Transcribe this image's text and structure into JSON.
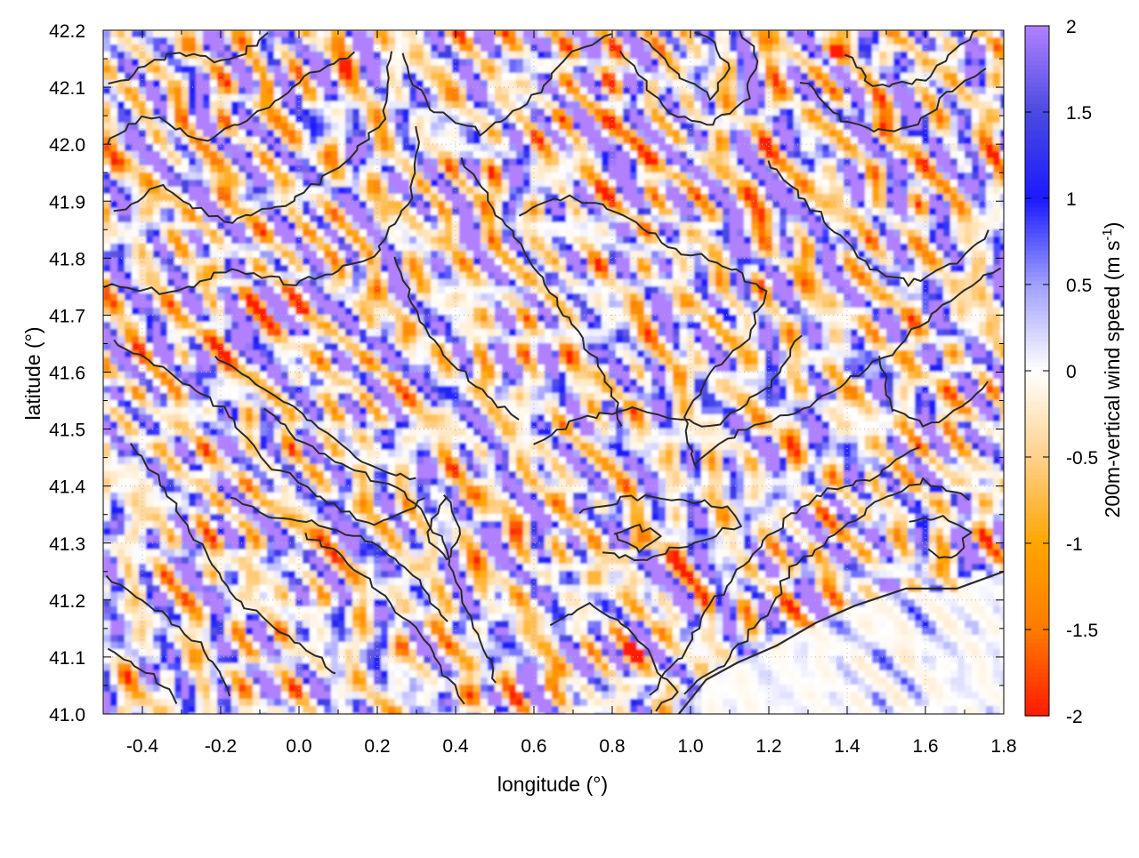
{
  "chart_data": {
    "type": "heatmap",
    "xlabel": "longitude (°)",
    "ylabel": "latitude (°)",
    "colorbar_label": "200m-vertical wind speed (m s",
    "colorbar_label_sup": "-1",
    "colorbar_label_end": ")",
    "xlim": [
      -0.5,
      1.8
    ],
    "ylim": [
      41.0,
      42.2
    ],
    "clim": [
      -2,
      2
    ],
    "x_ticks": [
      -0.4,
      -0.2,
      0.0,
      0.2,
      0.4,
      0.6,
      0.8,
      1.0,
      1.2,
      1.4,
      1.6,
      1.8
    ],
    "x_tick_labels": [
      "-0.4",
      "-0.2",
      "0.0",
      "0.2",
      "0.4",
      "0.6",
      "0.8",
      "1.0",
      "1.2",
      "1.4",
      "1.6",
      "1.8"
    ],
    "y_ticks": [
      41.0,
      41.1,
      41.2,
      41.3,
      41.4,
      41.5,
      41.6,
      41.7,
      41.8,
      41.9,
      42.0,
      42.1,
      42.2
    ],
    "y_tick_labels": [
      "41.0",
      "41.1",
      "41.2",
      "41.3",
      "41.4",
      "41.5",
      "41.6",
      "41.7",
      "41.8",
      "41.9",
      "42.0",
      "42.1",
      "42.2"
    ],
    "colorbar_ticks": [
      2,
      1.5,
      1,
      0.5,
      0,
      -0.5,
      -1,
      -1.5,
      -2
    ],
    "colorbar_tick_labels": [
      "2",
      "1.5",
      "1",
      "0.5",
      "0",
      "-0.5",
      "-1",
      "-1.5",
      "-2"
    ],
    "colormap": [
      {
        "v": -2.0,
        "color": "#ff1a00"
      },
      {
        "v": -1.5,
        "color": "#ff7a00"
      },
      {
        "v": -1.0,
        "color": "#ffa500"
      },
      {
        "v": -0.5,
        "color": "#ffd08a"
      },
      {
        "v": 0.0,
        "color": "#ffffff"
      },
      {
        "v": 0.5,
        "color": "#a0a0ff"
      },
      {
        "v": 1.0,
        "color": "#1a1aff"
      },
      {
        "v": 1.5,
        "color": "#4a4ae0"
      },
      {
        "v": 2.0,
        "color": "#b080ff"
      }
    ],
    "grid": true,
    "contour_color": "#2a2a2a",
    "coastline_points": [
      [
        0.97,
        41.0
      ],
      [
        1.04,
        41.06
      ],
      [
        1.12,
        41.09
      ],
      [
        1.22,
        41.12
      ],
      [
        1.32,
        41.16
      ],
      [
        1.42,
        41.19
      ],
      [
        1.55,
        41.22
      ],
      [
        1.68,
        41.22
      ],
      [
        1.8,
        41.25
      ]
    ]
  }
}
